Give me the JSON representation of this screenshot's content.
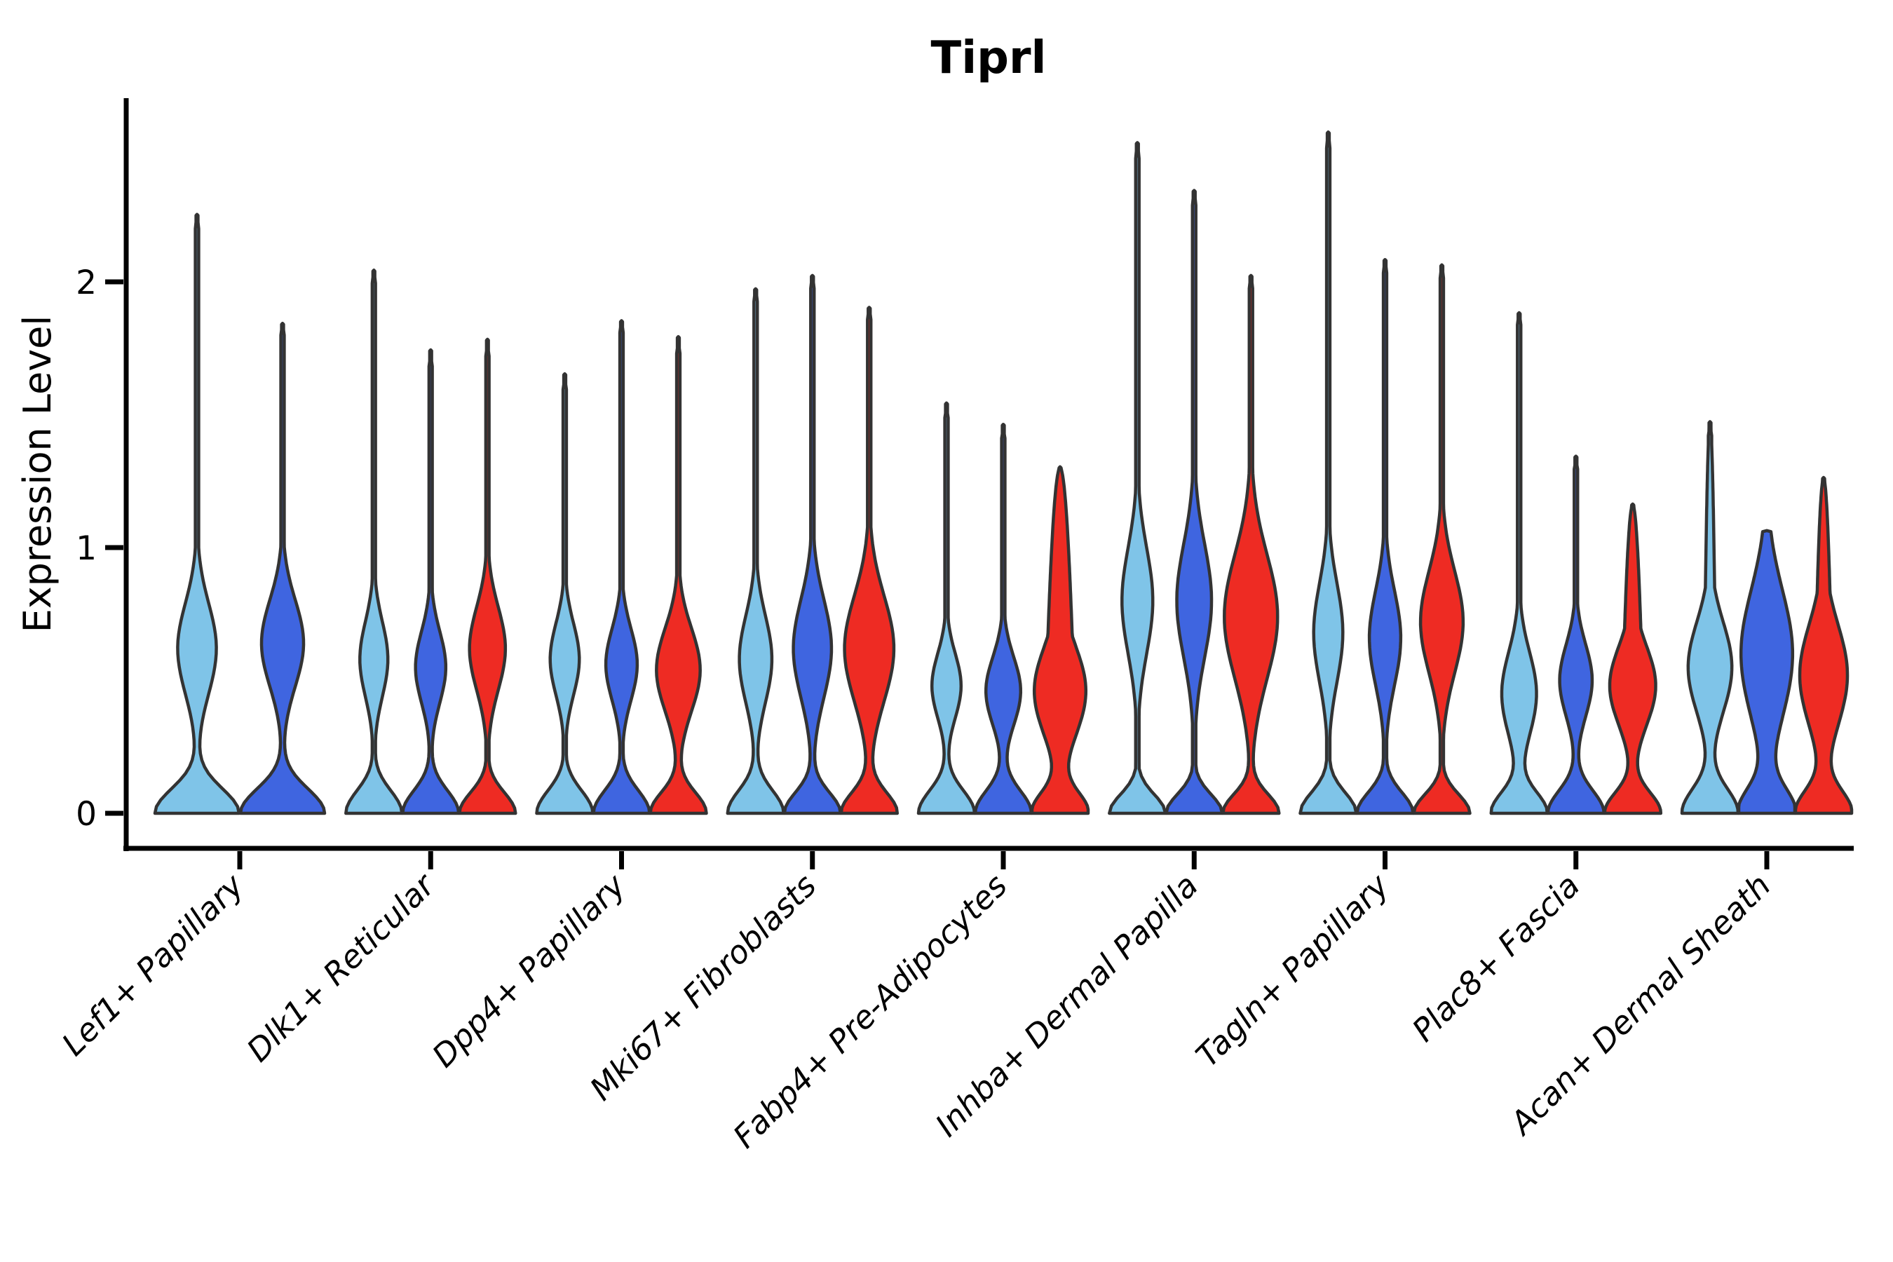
{
  "figure": {
    "title": "Tiprl",
    "background_color": "#FFFFFF"
  },
  "axes": {
    "ylabel": "Expression Level",
    "ytick_labels": [
      "0",
      "1",
      "2"
    ],
    "axis_color": "#000000"
  },
  "colors": {
    "series": [
      "#7FC4E8",
      "#3F65E0",
      "#EE2B23"
    ],
    "violin_outline": "#333333"
  },
  "chart_data": {
    "type": "violin",
    "title": "Tiprl",
    "xlabel": "",
    "ylabel": "Expression Level",
    "ylim": [
      0,
      2.7
    ],
    "yticks": [
      0,
      1,
      2
    ],
    "grid": false,
    "legend_position": "none",
    "series_colors": [
      "#7FC4E8",
      "#3F65E0",
      "#EE2B23"
    ],
    "series_names": [
      "group-1-lightblue",
      "group-2-royalblue",
      "group-3-red"
    ],
    "categories": [
      "Lef1+ Papillary",
      "Dlk1+ Reticular",
      "Dpp4+ Papillary",
      "Mki67+ Fibroblasts",
      "Fabp4+ Pre-Adipocytes",
      "Inhba+ Dermal Papilla",
      "Tagln+ Papillary",
      "Plac8+ Fascia",
      "Acan+ Dermal Sheath"
    ],
    "note": "All violins rest on 0 with a wide base lobe, a pinched waist, a mid bulge (mode), and a thin spike to the max expression value. Lef1+ Papillary has only 2 violins (no red series).",
    "violins": [
      {
        "category": "Lef1+ Papillary",
        "series": 0,
        "max": 2.25,
        "mode": 0.62,
        "body_sigma": 0.24,
        "body_amp": 0.46,
        "base_sigma": 0.13,
        "taper": 0
      },
      {
        "category": "Lef1+ Papillary",
        "series": 1,
        "max": 1.84,
        "mode": 0.64,
        "body_sigma": 0.23,
        "body_amp": 0.5,
        "base_sigma": 0.13,
        "taper": 0
      },
      {
        "category": "Dlk1+ Reticular",
        "series": 0,
        "max": 2.04,
        "mode": 0.58,
        "body_sigma": 0.2,
        "body_amp": 0.5,
        "base_sigma": 0.12,
        "taper": 0
      },
      {
        "category": "Dlk1+ Reticular",
        "series": 1,
        "max": 1.74,
        "mode": 0.55,
        "body_sigma": 0.19,
        "body_amp": 0.54,
        "base_sigma": 0.12,
        "taper": 0
      },
      {
        "category": "Dlk1+ Reticular",
        "series": 2,
        "max": 1.78,
        "mode": 0.62,
        "body_sigma": 0.22,
        "body_amp": 0.64,
        "base_sigma": 0.11,
        "taper": 0
      },
      {
        "category": "Dpp4+ Papillary",
        "series": 0,
        "max": 1.65,
        "mode": 0.58,
        "body_sigma": 0.19,
        "body_amp": 0.52,
        "base_sigma": 0.12,
        "taper": 0
      },
      {
        "category": "Dpp4+ Papillary",
        "series": 1,
        "max": 1.85,
        "mode": 0.56,
        "body_sigma": 0.19,
        "body_amp": 0.56,
        "base_sigma": 0.12,
        "taper": 0
      },
      {
        "category": "Dpp4+ Papillary",
        "series": 2,
        "max": 1.79,
        "mode": 0.54,
        "body_sigma": 0.22,
        "body_amp": 0.78,
        "base_sigma": 0.11,
        "taper": 0
      },
      {
        "category": "Mki67+ Fibroblasts",
        "series": 0,
        "max": 1.97,
        "mode": 0.58,
        "body_sigma": 0.23,
        "body_amp": 0.58,
        "base_sigma": 0.12,
        "taper": 0
      },
      {
        "category": "Mki67+ Fibroblasts",
        "series": 1,
        "max": 2.02,
        "mode": 0.62,
        "body_sigma": 0.26,
        "body_amp": 0.68,
        "base_sigma": 0.11,
        "taper": 0
      },
      {
        "category": "Mki67+ Fibroblasts",
        "series": 2,
        "max": 1.9,
        "mode": 0.62,
        "body_sigma": 0.28,
        "body_amp": 0.88,
        "base_sigma": 0.11,
        "taper": 0
      },
      {
        "category": "Fabp4+ Pre-Adipocytes",
        "series": 0,
        "max": 1.54,
        "mode": 0.48,
        "body_sigma": 0.17,
        "body_amp": 0.52,
        "base_sigma": 0.12,
        "taper": 0
      },
      {
        "category": "Fabp4+ Pre-Adipocytes",
        "series": 1,
        "max": 1.46,
        "mode": 0.46,
        "body_sigma": 0.18,
        "body_amp": 0.62,
        "base_sigma": 0.12,
        "taper": 0
      },
      {
        "category": "Fabp4+ Pre-Adipocytes",
        "series": 2,
        "max": 1.3,
        "mode": 0.46,
        "body_sigma": 0.24,
        "body_amp": 0.92,
        "base_sigma": 0.11,
        "taper": 0.5
      },
      {
        "category": "Inhba+ Dermal Papilla",
        "series": 0,
        "max": 2.52,
        "mode": 0.8,
        "body_sigma": 0.28,
        "body_amp": 0.55,
        "base_sigma": 0.1,
        "taper": 0
      },
      {
        "category": "Inhba+ Dermal Papilla",
        "series": 1,
        "max": 2.34,
        "mode": 0.8,
        "body_sigma": 0.3,
        "body_amp": 0.62,
        "base_sigma": 0.1,
        "taper": 0
      },
      {
        "category": "Inhba+ Dermal Papilla",
        "series": 2,
        "max": 2.02,
        "mode": 0.74,
        "body_sigma": 0.33,
        "body_amp": 0.95,
        "base_sigma": 0.1,
        "taper": 0
      },
      {
        "category": "Tagln+ Papillary",
        "series": 0,
        "max": 2.56,
        "mode": 0.68,
        "body_sigma": 0.26,
        "body_amp": 0.52,
        "base_sigma": 0.11,
        "taper": 0
      },
      {
        "category": "Tagln+ Papillary",
        "series": 1,
        "max": 2.08,
        "mode": 0.66,
        "body_sigma": 0.25,
        "body_amp": 0.56,
        "base_sigma": 0.11,
        "taper": 0
      },
      {
        "category": "Tagln+ Papillary",
        "series": 2,
        "max": 2.06,
        "mode": 0.72,
        "body_sigma": 0.27,
        "body_amp": 0.76,
        "base_sigma": 0.1,
        "taper": 0
      },
      {
        "category": "Plac8+ Fascia",
        "series": 0,
        "max": 1.88,
        "mode": 0.45,
        "body_sigma": 0.22,
        "body_amp": 0.62,
        "base_sigma": 0.11,
        "taper": 0
      },
      {
        "category": "Plac8+ Fascia",
        "series": 1,
        "max": 1.34,
        "mode": 0.5,
        "body_sigma": 0.19,
        "body_amp": 0.58,
        "base_sigma": 0.12,
        "taper": 0
      },
      {
        "category": "Plac8+ Fascia",
        "series": 2,
        "max": 1.16,
        "mode": 0.48,
        "body_sigma": 0.21,
        "body_amp": 0.82,
        "base_sigma": 0.11,
        "taper": 0.35
      },
      {
        "category": "Acan+ Dermal Sheath",
        "series": 0,
        "max": 1.47,
        "mode": 0.55,
        "body_sigma": 0.24,
        "body_amp": 0.78,
        "base_sigma": 0.13,
        "taper": 0.2
      },
      {
        "category": "Acan+ Dermal Sheath",
        "series": 1,
        "max": 1.06,
        "mode": 0.6,
        "body_sigma": 0.34,
        "body_amp": 0.92,
        "base_sigma": 0.13,
        "taper": 0.55
      },
      {
        "category": "Acan+ Dermal Sheath",
        "series": 2,
        "max": 1.26,
        "mode": 0.52,
        "body_sigma": 0.27,
        "body_amp": 0.85,
        "base_sigma": 0.12,
        "taper": 0.3
      }
    ]
  }
}
